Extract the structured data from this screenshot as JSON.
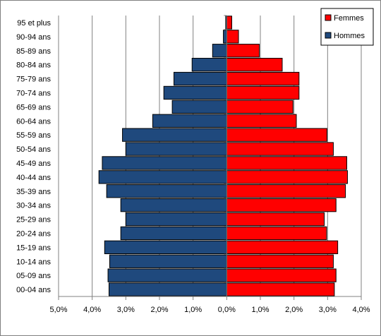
{
  "chart_data": {
    "type": "bar",
    "orientation": "horizontal",
    "subtype": "population-pyramid",
    "categories": [
      "95 et plus",
      "90-94 ans",
      "85-89 ans",
      "80-84 ans",
      "75-79 ans",
      "70-74 ans",
      "65-69 ans",
      "60-64 ans",
      "55-59 ans",
      "50-54 ans",
      "45-49 ans",
      "40-44 ans",
      "35-39 ans",
      "30-34 ans",
      "25-29 ans",
      "20-24 ans",
      "15-19 ans",
      "10-14 ans",
      "05-09 ans",
      "00-04 ans"
    ],
    "series": [
      {
        "name": "Femmes",
        "color": "#ff0000",
        "side": "right",
        "values": [
          0.15,
          0.35,
          0.97,
          1.65,
          2.15,
          2.15,
          1.97,
          2.07,
          2.98,
          3.17,
          3.57,
          3.59,
          3.53,
          3.25,
          2.9,
          2.97,
          3.3,
          3.17,
          3.25,
          3.2
        ]
      },
      {
        "name": "Hommes",
        "color": "#1f497d",
        "side": "left",
        "values": [
          0.03,
          0.1,
          0.42,
          1.03,
          1.57,
          1.87,
          1.62,
          2.2,
          3.1,
          3.0,
          3.7,
          3.8,
          3.57,
          3.15,
          3.0,
          3.15,
          3.63,
          3.48,
          3.53,
          3.5
        ]
      }
    ],
    "x_ticks": [
      "5,0%",
      "4,0%",
      "3,0%",
      "2,0%",
      "1,0%",
      "0,0%",
      "1,0%",
      "2,0%",
      "3,0%",
      "4,0%"
    ],
    "xlim": [
      -5,
      4
    ],
    "grid": true,
    "legend_position": "top-right",
    "title": "",
    "xlabel": "",
    "ylabel": ""
  }
}
